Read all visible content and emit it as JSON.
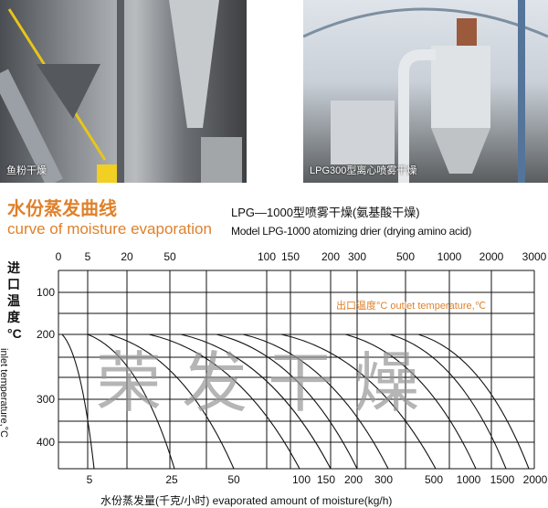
{
  "photos": [
    {
      "caption": "鱼粉干燥"
    },
    {
      "caption": "LPG300型离心喷雾干燥"
    }
  ],
  "header": {
    "title_cn": "水份蒸发曲线",
    "title_en": "curve of moisture evaporation",
    "subtitle_cn": "LPG—1000型喷雾干燥(氨基酸干燥)",
    "subtitle_en": "Model LPG-1000 atomizing drier (drying amino acid)"
  },
  "chart_data": {
    "type": "line",
    "top_tick_labels": [
      "0",
      "5",
      "20",
      "50",
      "",
      "100",
      "150",
      "200",
      "300",
      "500",
      "1000",
      "2000",
      "3000"
    ],
    "bottom_tick_labels": [
      "5",
      "25",
      "50",
      "100",
      "150",
      "200",
      "300",
      "500",
      "1000",
      "1500",
      "2000"
    ],
    "y_tick_labels": [
      "100",
      "200",
      "300",
      "400"
    ],
    "ylabel_cn": "进口温度",
    "ylabel_unit": "°C",
    "ylabel_en": "inlet temperature,°C",
    "xlabel": "水份蒸发量(千克/小时)   evaporated amount of moisture(kg/h)",
    "annotation": "出口温度°C  outlet temperature,℃",
    "grid": true,
    "curves_start_inlet_temp": 200,
    "curves_end_evaporation_kg_h": [
      5,
      25,
      50,
      100,
      150,
      200,
      300,
      500,
      1000,
      1500,
      2000
    ],
    "colors": {
      "accent": "#e0812a",
      "lines": "#111111"
    }
  },
  "watermark": "荣发干燥"
}
